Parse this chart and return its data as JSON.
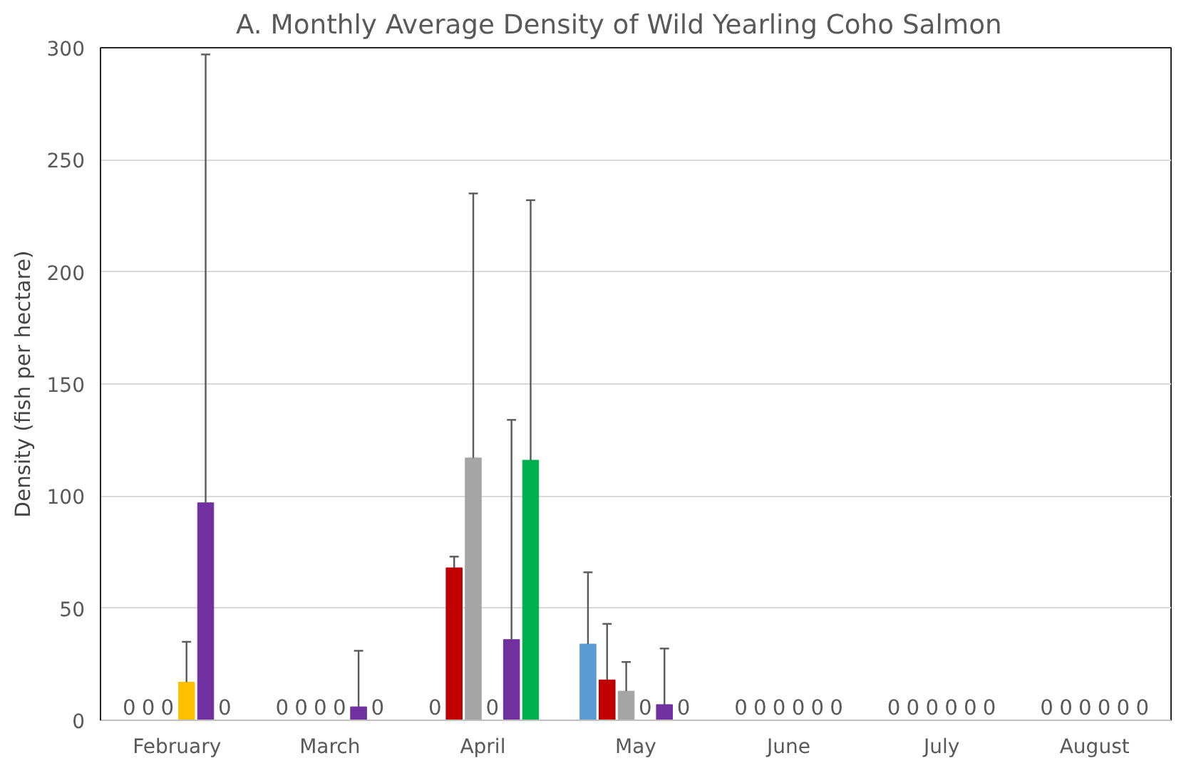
{
  "chart_data": {
    "type": "bar",
    "title": "A.     Monthly Average Density of Wild Yearling Coho Salmon",
    "ylabel": "Density (fish per hectare)",
    "categories": [
      "February",
      "March",
      "April",
      "May",
      "June",
      "July",
      "August"
    ],
    "ylim": [
      0,
      300
    ],
    "yticks": [
      0,
      50,
      100,
      150,
      200,
      250,
      300
    ],
    "grid": "y",
    "series": [
      {
        "color": "#5b9bd5",
        "values": [
          0,
          0,
          0,
          34,
          0,
          0,
          0
        ],
        "errors": [
          null,
          null,
          null,
          [
            34,
            66
          ],
          null,
          null,
          null
        ],
        "value_labels": [
          "0",
          "0",
          "0",
          null,
          "0",
          "0",
          "0"
        ]
      },
      {
        "color": "#c00000",
        "values": [
          0,
          0,
          68,
          18,
          0,
          0,
          0
        ],
        "errors": [
          null,
          null,
          [
            68,
            73
          ],
          [
            18,
            43
          ],
          null,
          null,
          null
        ],
        "value_labels": [
          "0",
          "0",
          null,
          null,
          "0",
          "0",
          "0"
        ]
      },
      {
        "color": "#a5a5a5",
        "values": [
          0,
          0,
          117,
          13,
          0,
          0,
          0
        ],
        "errors": [
          null,
          null,
          [
            117,
            235
          ],
          [
            13,
            26
          ],
          null,
          null,
          null
        ],
        "value_labels": [
          "0",
          "0",
          null,
          null,
          "0",
          "0",
          "0"
        ]
      },
      {
        "color": "#ffc000",
        "values": [
          17,
          0,
          0,
          0,
          0,
          0,
          0
        ],
        "errors": [
          [
            17,
            35
          ],
          null,
          null,
          null,
          null,
          null,
          null
        ],
        "value_labels": [
          null,
          "0",
          "0",
          "0",
          "0",
          "0",
          "0"
        ]
      },
      {
        "color": "#7030a0",
        "values": [
          97,
          6,
          36,
          7,
          0,
          0,
          0
        ],
        "errors": [
          [
            97,
            297
          ],
          [
            6,
            31
          ],
          [
            36,
            134
          ],
          [
            7,
            32
          ],
          null,
          null,
          null
        ],
        "value_labels": [
          null,
          null,
          null,
          null,
          "0",
          "0",
          "0"
        ]
      },
      {
        "color": "#00b050",
        "values": [
          0,
          0,
          116,
          0,
          0,
          0,
          0
        ],
        "errors": [
          null,
          null,
          [
            116,
            232
          ],
          null,
          null,
          null,
          null
        ],
        "value_labels": [
          "0",
          "0",
          null,
          "0",
          "0",
          "0",
          "0"
        ]
      }
    ]
  }
}
